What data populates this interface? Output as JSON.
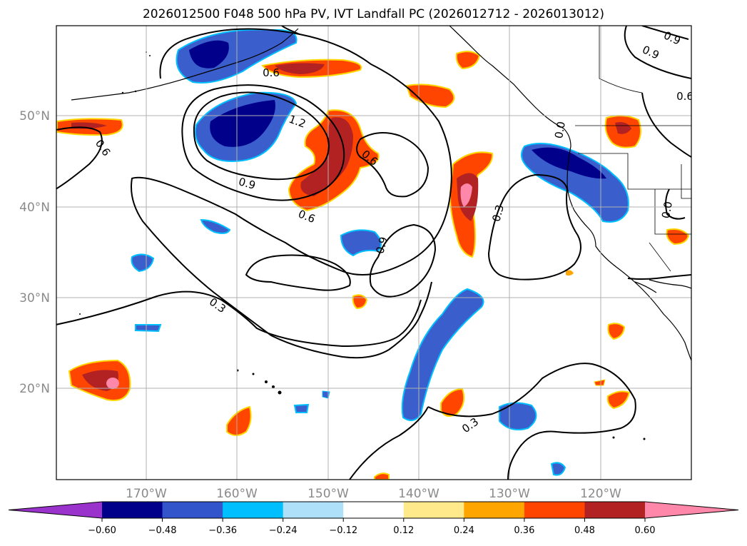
{
  "title": "2026012500 F048 500 hPa PV, IVT Landfall PC (2026012712 - 2026013012)",
  "map": {
    "lon_labels": [
      "170°W",
      "160°W",
      "150°W",
      "140°W",
      "130°W",
      "120°W"
    ],
    "lat_labels": [
      "50°N",
      "40°N",
      "30°N",
      "20°N"
    ]
  },
  "contour_labels": [
    "0.6",
    "0.9",
    "0.6",
    "0.6",
    "1.2",
    "0.9",
    "0.6",
    "0.6",
    "0.3",
    "0.9",
    "0.3",
    "0.3",
    "0.0",
    "0.0",
    "0.6",
    "0.9"
  ],
  "colorbar": {
    "ticks": [
      "−0.60",
      "−0.48",
      "−0.36",
      "−0.24",
      "−0.12",
      "0.12",
      "0.24",
      "0.36",
      "0.48",
      "0.60"
    ],
    "colors": [
      "#9933cc",
      "#00008b",
      "#3355cc",
      "#00bfff",
      "#aee0fa",
      "#ffffff",
      "#ffe98a",
      "#ffa500",
      "#ff4500",
      "#b22222",
      "#ff88aa"
    ]
  }
}
